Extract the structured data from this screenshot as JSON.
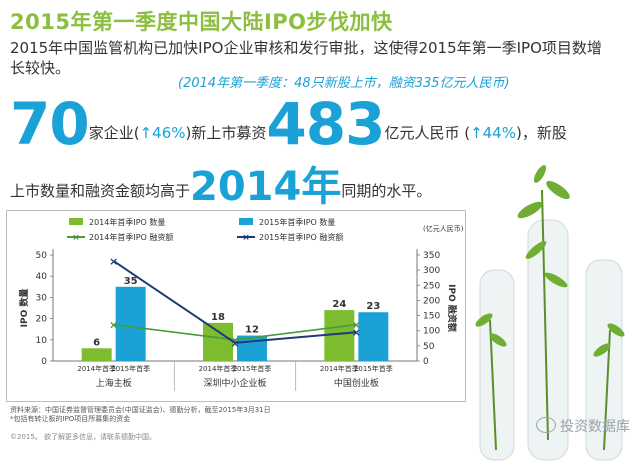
{
  "title": "2015年第一季度中国大陆IPO步伐加快",
  "intro": "2015年中国监管机构已加快IPO企业审核和发行审批，这使得2015年第一季IPO项目数增长较快。",
  "note": "(2014年第一季度：48只新股上市，融资335亿元人民币)",
  "stats": {
    "count": "70",
    "count_text": "家企业(",
    "count_change": "↑46%",
    "count_text2": ")新上市募资",
    "amount": "483",
    "amount_text": "亿元人民币 (",
    "amount_change": "↑44%",
    "amount_text2": ")，新股",
    "line2_pre": "上市数量和融资金额均高于",
    "year": "2014年",
    "line2_post": "同期的水平。"
  },
  "chart_data": {
    "type": "bar",
    "categories": [
      "上海主板",
      "深圳中小企业板",
      "中国创业板"
    ],
    "sub_labels": [
      "2014年首季",
      "2015年首季"
    ],
    "series": [
      {
        "name": "2014年首季IPO 数量",
        "values": [
          6,
          18,
          24
        ],
        "color": "#7dbb2f",
        "kind": "bar",
        "axis": "left"
      },
      {
        "name": "2015年首季IPO 数量",
        "values": [
          35,
          12,
          23
        ],
        "color": "#1aa1d6",
        "kind": "bar",
        "axis": "left"
      },
      {
        "name": "2014年首季IPO 融资额",
        "values": [
          120,
          70,
          120
        ],
        "color": "#4a9a3a",
        "kind": "line",
        "axis": "right"
      },
      {
        "name": "2015年首季IPO 融资额",
        "values": [
          330,
          60,
          95
        ],
        "color": "#1f3a78",
        "kind": "line",
        "axis": "right"
      }
    ],
    "y_left": {
      "label": "IPO 数量",
      "min": 0,
      "max": 50,
      "ticks": [
        0,
        10,
        20,
        30,
        40,
        50
      ]
    },
    "y_right": {
      "label": "IPO 融资额",
      "unit": "(亿元人民币)",
      "min": 0,
      "max": 350,
      "ticks": [
        0,
        50,
        100,
        150,
        200,
        250,
        300,
        350
      ]
    },
    "bar_labels": [
      [
        "6",
        "35"
      ],
      [
        "18",
        "12"
      ],
      [
        "24",
        "23"
      ]
    ],
    "legend_position": "top"
  },
  "source": [
    "资料来源：中国证券监督管理委员会(中国证监会)、德勤分析，截至2015年3月31日",
    "*包括有转让板的IPO项目所募集的资金"
  ],
  "copyright": "©2015。 欲了解更多信息，请联系德勤中国。",
  "watermark": "投资数据库"
}
